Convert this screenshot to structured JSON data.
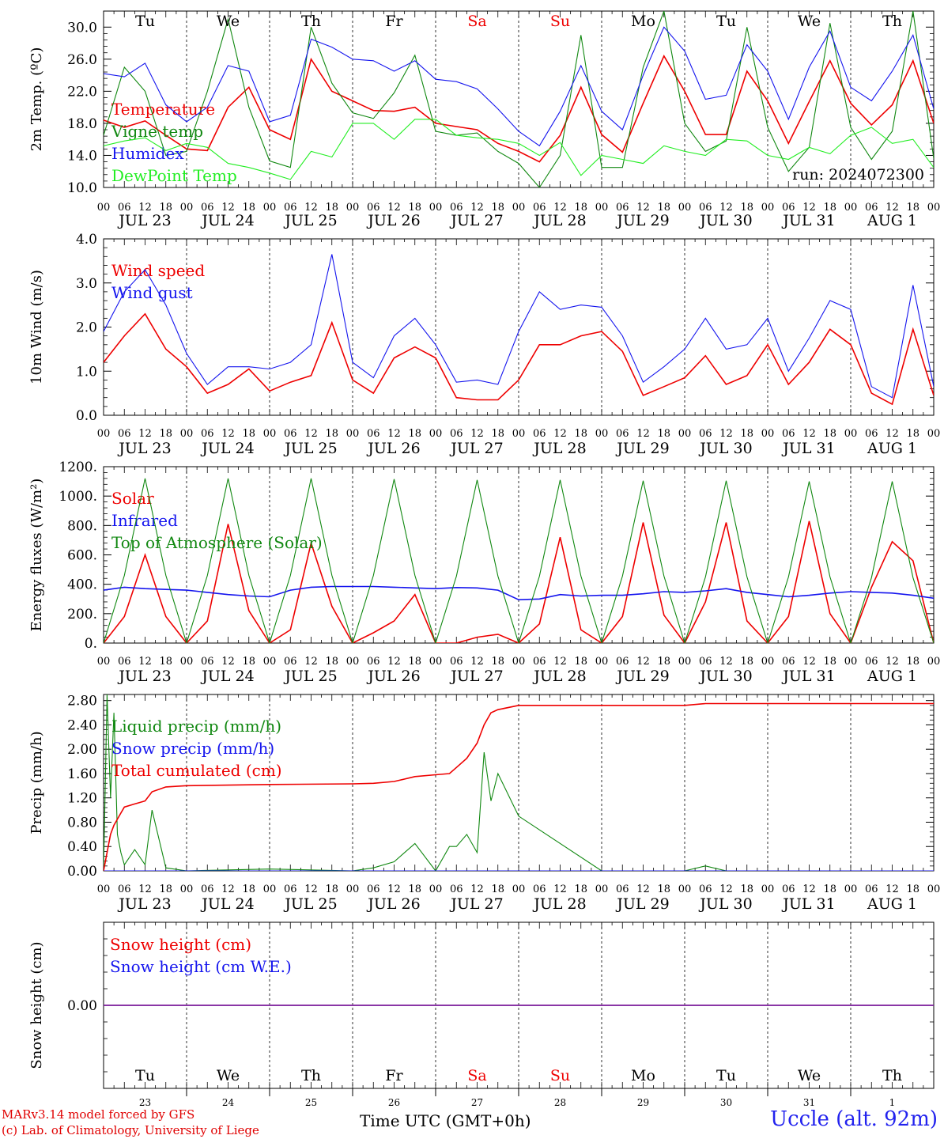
{
  "colors": {
    "red": "#ee0000",
    "green": "#118811",
    "blue": "#1515ee",
    "lightgreen": "#22ee22",
    "purple": "#7a1a9a",
    "weekend": "#ee0000"
  },
  "days": [
    "JUL 23",
    "JUL 24",
    "JUL 25",
    "JUL 26",
    "JUL 27",
    "JUL 28",
    "JUL 29",
    "JUL 30",
    "JUL 31",
    "AUG  1"
  ],
  "weekdays": [
    "Tu",
    "We",
    "Th",
    "Fr",
    "Sa",
    "Su",
    "Mo",
    "Tu",
    "We",
    "Th"
  ],
  "weekend_flags": [
    false,
    false,
    false,
    false,
    true,
    true,
    false,
    false,
    false,
    false
  ],
  "day_numbers": [
    "23",
    "24",
    "25",
    "26",
    "27",
    "28",
    "29",
    "30",
    "31",
    "1"
  ],
  "hour_ticks": [
    "00",
    "06",
    "12",
    "18"
  ],
  "hour_end": "00",
  "run_label": "run: 2024072300",
  "footer": {
    "model": "MARv3.14 model forced by GFS",
    "lab": "(c) Lab. of Climatology, University of Liege",
    "time_label": "Time UTC (GMT+0h)",
    "station": "Uccle (alt. 92m)"
  },
  "chart_data": [
    {
      "type": "line",
      "ylabel": "2m Temp. (ºC)",
      "ylim": [
        10,
        32
      ],
      "yticks": [
        "10.0",
        "14.0",
        "18.0",
        "22.0",
        "26.0",
        "30.0"
      ],
      "x_hours": [
        0,
        6,
        12,
        18,
        24,
        30,
        36,
        42,
        48,
        54,
        60,
        66,
        72,
        78,
        84,
        90,
        96,
        102,
        108,
        114,
        120,
        126,
        132,
        138,
        144,
        150,
        156,
        162,
        168,
        174,
        180,
        186,
        192,
        198,
        204,
        210,
        216,
        222,
        228,
        234,
        240
      ],
      "series": [
        {
          "name": "Temperature",
          "color": "red",
          "values": [
            18.4,
            17.5,
            18.3,
            16.5,
            14.8,
            14.6,
            20.0,
            22.5,
            17.2,
            16.0,
            26.0,
            22.0,
            20.8,
            19.6,
            19.5,
            20.0,
            18.0,
            17.6,
            17.2,
            15.5,
            14.5,
            13.2,
            16.5,
            22.5,
            16.6,
            14.4,
            20.5,
            26.4,
            22.0,
            16.6,
            16.6,
            24.5,
            20.8,
            15.5,
            20.7,
            25.8,
            20.5,
            17.8,
            20.3,
            25.8,
            18.0
          ]
        },
        {
          "name": "Vigne temp",
          "color": "green",
          "values": [
            16.5,
            25.0,
            22.0,
            14.0,
            14.5,
            22.0,
            31.0,
            20.0,
            13.3,
            12.5,
            30.0,
            23.0,
            19.3,
            18.6,
            21.8,
            26.5,
            17.0,
            16.5,
            16.8,
            14.5,
            13.0,
            10.0,
            14.0,
            29.0,
            12.5,
            12.5,
            25.0,
            32.0,
            18.0,
            14.5,
            15.8,
            30.0,
            17.5,
            12.0,
            15.0,
            30.5,
            17.5,
            13.5,
            17.0,
            32.0,
            13.6
          ]
        },
        {
          "name": "Humidex",
          "color": "blue",
          "values": [
            24.2,
            23.8,
            25.5,
            20.3,
            18.2,
            20.0,
            25.2,
            24.5,
            18.2,
            19.0,
            28.5,
            27.5,
            26.0,
            25.8,
            24.5,
            25.8,
            23.5,
            23.2,
            22.3,
            19.8,
            17.0,
            15.2,
            19.5,
            25.2,
            19.5,
            17.2,
            24.0,
            30.0,
            27.0,
            21.0,
            21.5,
            27.8,
            24.5,
            18.5,
            25.0,
            29.5,
            22.5,
            20.8,
            24.5,
            29.0,
            19.8
          ]
        },
        {
          "name": "DewPoint Temp",
          "color": "lightgreen",
          "values": [
            15.2,
            15.8,
            16.2,
            14.6,
            15.5,
            15.0,
            13.0,
            12.5,
            11.8,
            11.0,
            14.5,
            13.8,
            18.0,
            18.0,
            16.0,
            18.5,
            18.5,
            16.5,
            16.2,
            16.0,
            15.5,
            14.0,
            15.6,
            11.5,
            14.0,
            13.5,
            13.0,
            15.2,
            14.5,
            14.0,
            16.0,
            15.8,
            14.0,
            13.5,
            15.0,
            14.2,
            16.5,
            17.5,
            15.5,
            16.0,
            12.5
          ]
        }
      ]
    },
    {
      "type": "line",
      "ylabel": "10m Wind (m/s)",
      "ylim": [
        0,
        4
      ],
      "yticks": [
        "0.0",
        "1.0",
        "2.0",
        "3.0",
        "4.0"
      ],
      "x_hours": [
        0,
        6,
        12,
        18,
        24,
        30,
        36,
        42,
        48,
        54,
        60,
        66,
        72,
        78,
        84,
        90,
        96,
        102,
        108,
        114,
        120,
        126,
        132,
        138,
        144,
        150,
        156,
        162,
        168,
        174,
        180,
        186,
        192,
        198,
        204,
        210,
        216,
        222,
        228,
        234,
        240
      ],
      "series": [
        {
          "name": "Wind speed",
          "color": "red",
          "values": [
            1.2,
            1.8,
            2.3,
            1.5,
            1.1,
            0.5,
            0.7,
            1.05,
            0.55,
            0.75,
            0.9,
            2.1,
            0.8,
            0.5,
            1.3,
            1.55,
            1.3,
            0.4,
            0.35,
            0.35,
            0.8,
            1.6,
            1.6,
            1.8,
            1.9,
            1.45,
            0.45,
            0.65,
            0.85,
            1.35,
            0.7,
            0.9,
            1.6,
            0.7,
            1.2,
            1.95,
            1.6,
            0.5,
            0.25,
            1.95,
            0.45
          ]
        },
        {
          "name": "Wind gust",
          "color": "blue",
          "values": [
            1.9,
            2.8,
            3.3,
            2.5,
            1.4,
            0.7,
            1.1,
            1.1,
            1.05,
            1.2,
            1.6,
            3.65,
            1.2,
            0.85,
            1.8,
            2.2,
            1.6,
            0.75,
            0.8,
            0.7,
            1.9,
            2.8,
            2.4,
            2.5,
            2.45,
            1.8,
            0.75,
            1.1,
            1.5,
            2.2,
            1.5,
            1.6,
            2.2,
            1.0,
            1.75,
            2.6,
            2.4,
            0.65,
            0.4,
            2.95,
            0.65
          ]
        }
      ]
    },
    {
      "type": "line",
      "ylabel": "Energy fluxes (W/m²)",
      "ylim": [
        0,
        1200
      ],
      "yticks": [
        "0.",
        "200.",
        "400.",
        "600.",
        "800.",
        "1000.",
        "1200."
      ],
      "x_hours": [
        0,
        6,
        12,
        18,
        24,
        30,
        36,
        42,
        48,
        54,
        60,
        66,
        72,
        78,
        84,
        90,
        96,
        102,
        108,
        114,
        120,
        126,
        132,
        138,
        144,
        150,
        156,
        162,
        168,
        174,
        180,
        186,
        192,
        198,
        204,
        210,
        216,
        222,
        228,
        234,
        240
      ],
      "series": [
        {
          "name": "Solar",
          "color": "red",
          "values": [
            0,
            180,
            600,
            180,
            0,
            150,
            810,
            220,
            0,
            90,
            680,
            250,
            0,
            70,
            150,
            330,
            0,
            0,
            40,
            60,
            0,
            130,
            720,
            90,
            0,
            180,
            820,
            190,
            0,
            280,
            820,
            150,
            0,
            180,
            830,
            200,
            0,
            380,
            690,
            560,
            0
          ]
        },
        {
          "name": "Infrared",
          "color": "blue",
          "values": [
            360,
            380,
            370,
            365,
            360,
            345,
            330,
            320,
            315,
            360,
            380,
            385,
            385,
            385,
            380,
            375,
            370,
            378,
            375,
            360,
            295,
            300,
            330,
            320,
            325,
            325,
            335,
            350,
            345,
            355,
            370,
            345,
            330,
            315,
            325,
            340,
            350,
            345,
            340,
            325,
            305
          ]
        },
        {
          "name": "Top of Atmosphere (Solar)",
          "color": "green",
          "values": [
            0,
            460,
            1120,
            460,
            0,
            460,
            1120,
            460,
            0,
            460,
            1120,
            460,
            0,
            460,
            1115,
            460,
            0,
            455,
            1110,
            455,
            0,
            455,
            1110,
            455,
            0,
            455,
            1105,
            455,
            0,
            450,
            1105,
            450,
            0,
            450,
            1100,
            450,
            0,
            445,
            1100,
            445,
            0
          ]
        }
      ]
    },
    {
      "type": "line",
      "ylabel": "Precip (mm/h)",
      "ylim": [
        0,
        2.9
      ],
      "yticks": [
        "0.00",
        "0.40",
        "0.80",
        "1.20",
        "1.60",
        "2.00",
        "2.40",
        "2.80"
      ],
      "x_hours": [
        0,
        1,
        2,
        3,
        4,
        5,
        6,
        9,
        12,
        14,
        18,
        24,
        48,
        72,
        78,
        84,
        90,
        96,
        100,
        102,
        105,
        108,
        110,
        112,
        114,
        120,
        144,
        168,
        174,
        180,
        192,
        216,
        240
      ],
      "series": [
        {
          "name": "Liquid precip (mm/h)",
          "color": "green",
          "values": [
            0,
            2.9,
            1.2,
            2.6,
            0.6,
            0.3,
            0.1,
            0.35,
            0.1,
            1.0,
            0.05,
            0,
            0.03,
            0,
            0.05,
            0.15,
            0.45,
            0,
            0.4,
            0.4,
            0.6,
            0.3,
            1.95,
            1.15,
            1.6,
            0.9,
            0,
            0,
            0.08,
            0,
            0,
            0,
            0
          ]
        },
        {
          "name": "Snow precip (mm/h)",
          "color": "blue",
          "values": [
            0,
            0,
            0,
            0,
            0,
            0,
            0,
            0,
            0,
            0,
            0,
            0,
            0,
            0,
            0,
            0,
            0,
            0,
            0,
            0,
            0,
            0,
            0,
            0,
            0,
            0,
            0,
            0,
            0,
            0,
            0,
            0,
            0
          ]
        },
        {
          "name": "Total cumulated (cm)",
          "color": "red",
          "values": [
            0,
            0.3,
            0.6,
            0.75,
            0.85,
            0.95,
            1.05,
            1.1,
            1.15,
            1.3,
            1.38,
            1.4,
            1.42,
            1.43,
            1.44,
            1.47,
            1.55,
            1.58,
            1.6,
            1.7,
            1.85,
            2.1,
            2.4,
            2.6,
            2.65,
            2.72,
            2.72,
            2.72,
            2.75,
            2.75,
            2.75,
            2.75,
            2.75
          ]
        }
      ]
    },
    {
      "type": "line",
      "ylabel": "Snow height (cm)",
      "ylim": [
        -1,
        1
      ],
      "yticks": [
        "0.00"
      ],
      "x_hours": [
        0,
        240
      ],
      "series": [
        {
          "name": "Snow height (cm)",
          "color": "red",
          "values": [
            0,
            0
          ]
        },
        {
          "name": "Snow height (cm W.E.)",
          "color": "blue",
          "values": [
            0,
            0
          ]
        }
      ]
    }
  ]
}
